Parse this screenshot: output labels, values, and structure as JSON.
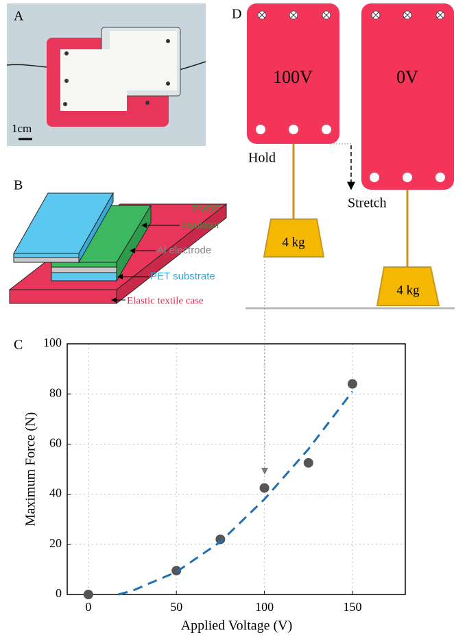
{
  "panels": {
    "a": {
      "label": "A",
      "scale_bar": "1cm"
    },
    "b": {
      "label": "B",
      "layers": [
        "PVDF",
        "insulator",
        "Al electrode",
        "PET substrate",
        "Elastic textile case"
      ]
    },
    "d": {
      "label": "D",
      "voltages": [
        "100V",
        "0V"
      ],
      "states": [
        "Hold",
        "Stretch"
      ],
      "weights": [
        "4 kg",
        "4 kg"
      ]
    }
  },
  "chart_data": {
    "type": "scatter",
    "panel_label": "C",
    "x_label": "Applied Voltage (V)",
    "y_label": "Maximum Force (N)",
    "xlim": [
      -12,
      180
    ],
    "ylim": [
      0,
      100
    ],
    "xticks": [
      0,
      50,
      100,
      150
    ],
    "yticks": [
      0,
      20,
      40,
      60,
      80,
      100
    ],
    "grid": true,
    "series": [
      {
        "style": "markers",
        "color": "#555555",
        "x": [
          0,
          50,
          75,
          100,
          125,
          150
        ],
        "values": [
          0,
          9.5,
          22,
          42.5,
          52.5,
          84
        ]
      },
      {
        "style": "dashed-line",
        "color": "#1f6fb4",
        "x": [
          17,
          25,
          50,
          75,
          100,
          125,
          150
        ],
        "values": [
          0,
          1.5,
          9,
          21,
          38,
          58,
          81
        ]
      }
    ]
  }
}
